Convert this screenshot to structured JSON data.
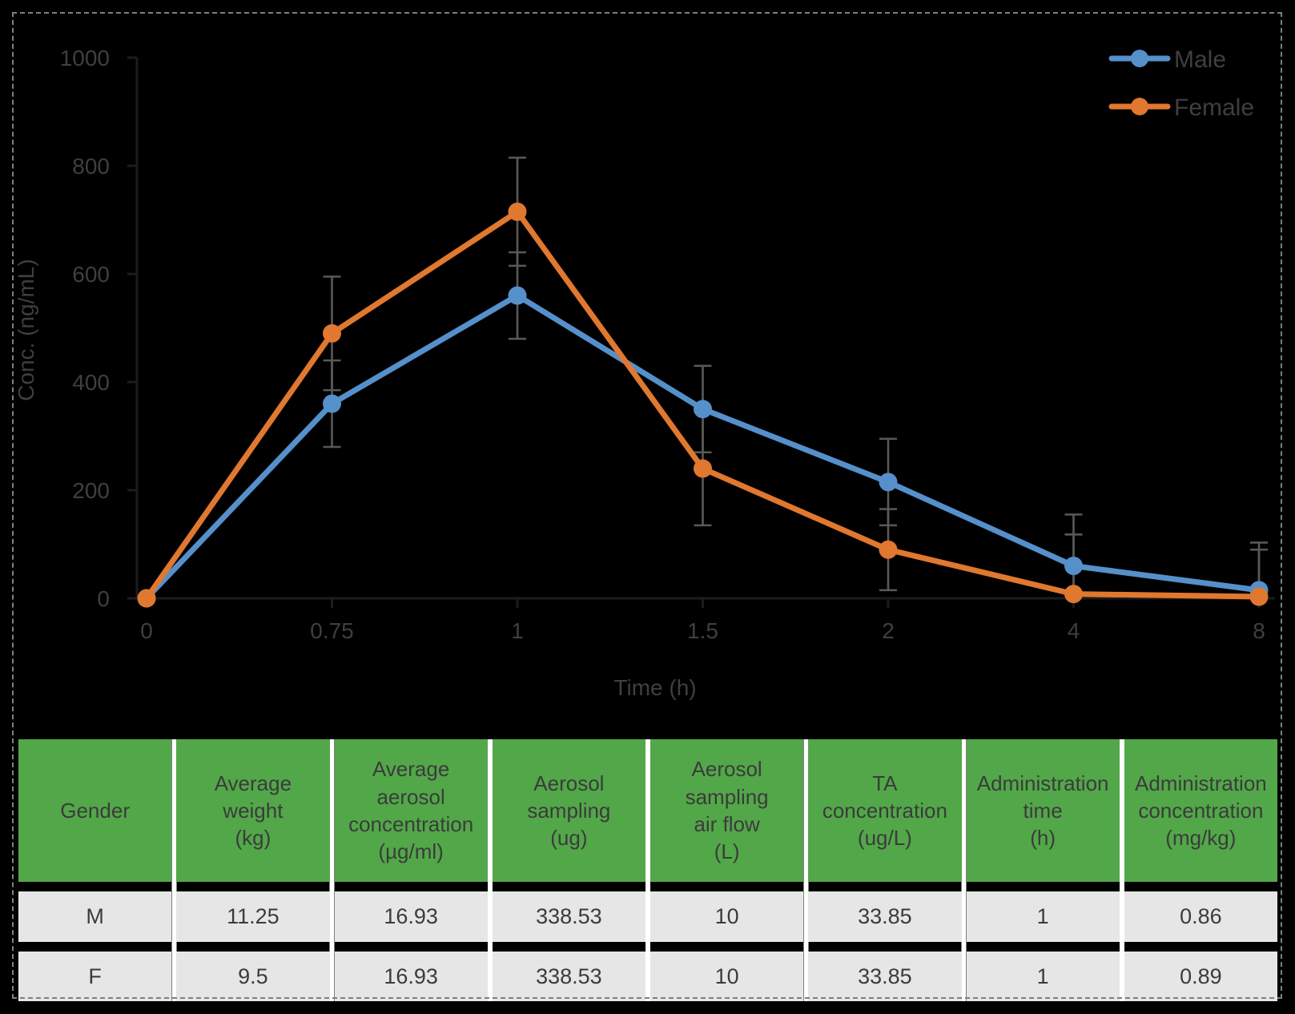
{
  "figure": {
    "background": "#000000",
    "border_color": "#7F7F7F"
  },
  "chart_data": {
    "type": "line",
    "title": "",
    "xlabel": "Time (h)",
    "ylabel": "Conc. (ng/mL)",
    "x_categories": [
      "0",
      "0.75",
      "1",
      "1.5",
      "2",
      "4",
      "8"
    ],
    "ylim": [
      0,
      1000
    ],
    "yticks": [
      0,
      200,
      400,
      600,
      800,
      1000
    ],
    "grid": false,
    "legend_position": "top-right",
    "axis_text_color": "#3F3F3F",
    "axis_line_color": "#1C1C1C",
    "error_bar_color": "#595959",
    "series": [
      {
        "name": "Male",
        "color": "#5590CB",
        "values": [
          0,
          360,
          560,
          350,
          215,
          60,
          15
        ],
        "error_plus_minus": [
          0,
          80,
          80,
          80,
          80,
          95,
          75
        ]
      },
      {
        "name": "Female",
        "color": "#E0782F",
        "values": [
          0,
          490,
          715,
          240,
          90,
          8,
          3
        ],
        "error_plus_minus": [
          0,
          105,
          100,
          105,
          75,
          110,
          100
        ]
      }
    ]
  },
  "table": {
    "header_bg": "#52A749",
    "row_bg": "#E7E6E6",
    "separator_color": "#FFFFFF",
    "text_color": "#3B3B3B",
    "headers": [
      [
        "Gender"
      ],
      [
        "Average",
        "weight",
        "(kg)"
      ],
      [
        "Average",
        "aerosol",
        "concentration",
        "(µg/ml)"
      ],
      [
        "Aerosol",
        "sampling",
        "(ug)"
      ],
      [
        "Aerosol",
        "sampling",
        "air flow",
        "(L)"
      ],
      [
        "TA",
        "concentration",
        "(ug/L)"
      ],
      [
        "Administration",
        "time",
        "(h)"
      ],
      [
        "Administration",
        "concentration",
        "(mg/kg)"
      ]
    ],
    "rows": [
      [
        "M",
        "11.25",
        "16.93",
        "338.53",
        "10",
        "33.85",
        "1",
        "0.86"
      ],
      [
        "F",
        "9.5",
        "16.93",
        "338.53",
        "10",
        "33.85",
        "1",
        "0.89"
      ]
    ]
  }
}
